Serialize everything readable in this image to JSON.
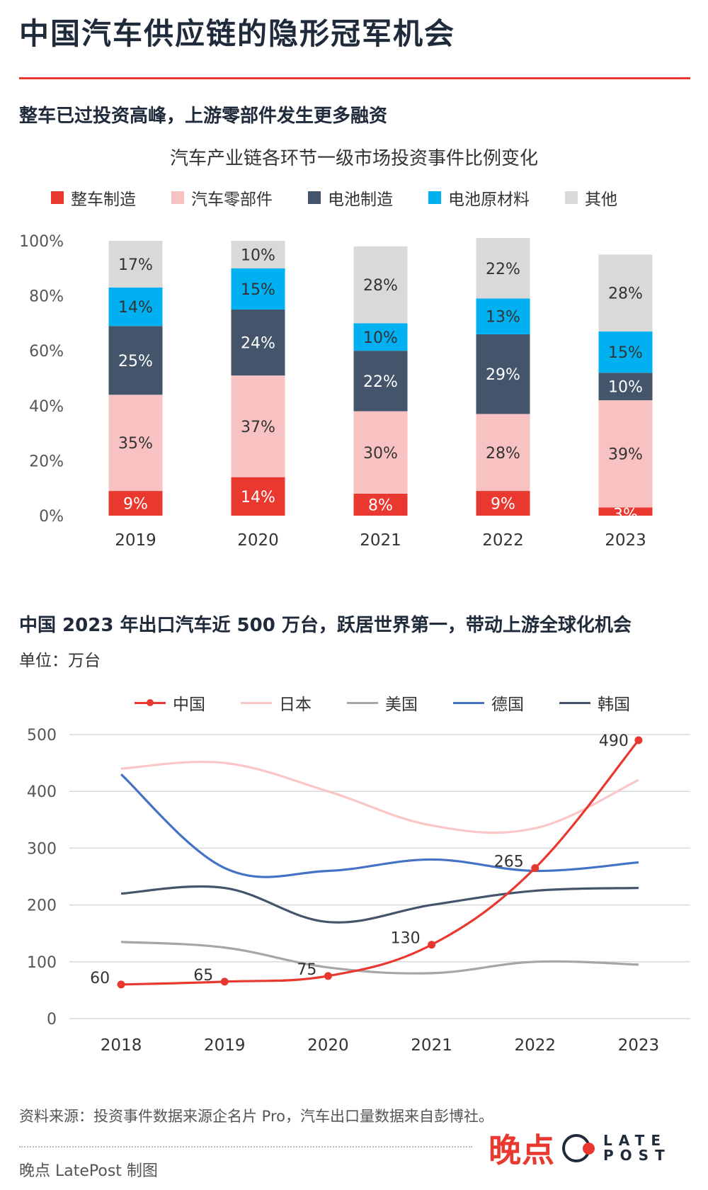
{
  "page": {
    "title": "中国汽车供应链的隐形冠军机会",
    "source": "资料来源：投资事件数据来源企名片 Pro，汽车出口量数据来自彭博社。",
    "credit": "晚点 LatePost 制图",
    "logo": {
      "cn": "晚点",
      "en_top": "LATE",
      "en_bottom": "POST"
    },
    "colors": {
      "accent": "#e8382f",
      "navy": "#1f2a3a"
    }
  },
  "chart_data": [
    {
      "type": "bar",
      "stacked": true,
      "section_title": "整车已过投资高峰，上游零部件发生更多融资",
      "title": "汽车产业链各环节一级市场投资事件比例变化",
      "categories": [
        "2019",
        "2020",
        "2021",
        "2022",
        "2023"
      ],
      "series": [
        {
          "name": "整车制造",
          "color": "#e8382f",
          "label_color": "#ffffff",
          "values": [
            9,
            14,
            8,
            9,
            3
          ]
        },
        {
          "name": "汽车零部件",
          "color": "#f9c2c2",
          "label_color": "#333333",
          "values": [
            35,
            37,
            30,
            28,
            39
          ]
        },
        {
          "name": "电池制造",
          "color": "#44546a",
          "label_color": "#ffffff",
          "values": [
            25,
            24,
            22,
            29,
            10
          ]
        },
        {
          "name": "电池原材料",
          "color": "#00b0f0",
          "label_color": "#333333",
          "values": [
            14,
            15,
            10,
            13,
            15
          ]
        },
        {
          "name": "其他",
          "color": "#d9d9d9",
          "label_color": "#333333",
          "values": [
            17,
            10,
            28,
            22,
            28
          ]
        }
      ],
      "y_ticks": [
        "0%",
        "20%",
        "40%",
        "60%",
        "80%",
        "100%"
      ],
      "ylim": [
        0,
        100
      ],
      "legend_position": "top",
      "grid": false
    },
    {
      "type": "line",
      "smooth": true,
      "section_title": "中国 2023 年出口汽车近 500 万台，跃居世界第一，带动上游全球化机会",
      "unit": "单位：万台",
      "x": [
        "2018",
        "2019",
        "2020",
        "2021",
        "2022",
        "2023"
      ],
      "series": [
        {
          "name": "中国",
          "color": "#e8382f",
          "markers": true,
          "labels": true,
          "values": [
            60,
            65,
            75,
            130,
            265,
            490
          ]
        },
        {
          "name": "日本",
          "color": "#fbc6c6",
          "values": [
            440,
            450,
            400,
            340,
            335,
            420
          ]
        },
        {
          "name": "美国",
          "color": "#a6a6a6",
          "values": [
            135,
            125,
            90,
            80,
            100,
            95
          ]
        },
        {
          "name": "德国",
          "color": "#4472c4",
          "values": [
            430,
            265,
            260,
            280,
            260,
            275
          ]
        },
        {
          "name": "韩国",
          "color": "#44546a",
          "values": [
            220,
            230,
            170,
            200,
            225,
            230
          ]
        }
      ],
      "y_ticks": [
        "0",
        "100",
        "200",
        "300",
        "400",
        "500"
      ],
      "ylim": [
        0,
        500
      ],
      "legend_position": "top",
      "grid": true
    }
  ]
}
